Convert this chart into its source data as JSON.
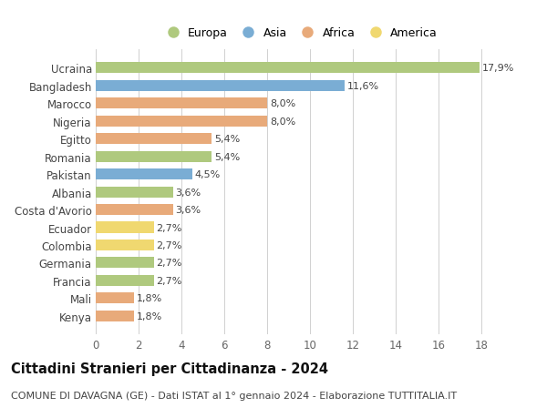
{
  "countries": [
    "Ucraina",
    "Bangladesh",
    "Marocco",
    "Nigeria",
    "Egitto",
    "Romania",
    "Pakistan",
    "Albania",
    "Costa d'Avorio",
    "Ecuador",
    "Colombia",
    "Germania",
    "Francia",
    "Mali",
    "Kenya"
  ],
  "values": [
    17.9,
    11.6,
    8.0,
    8.0,
    5.4,
    5.4,
    4.5,
    3.6,
    3.6,
    2.7,
    2.7,
    2.7,
    2.7,
    1.8,
    1.8
  ],
  "labels": [
    "17,9%",
    "11,6%",
    "8,0%",
    "8,0%",
    "5,4%",
    "5,4%",
    "4,5%",
    "3,6%",
    "3,6%",
    "2,7%",
    "2,7%",
    "2,7%",
    "2,7%",
    "1,8%",
    "1,8%"
  ],
  "continents": [
    "Europa",
    "Asia",
    "Africa",
    "Africa",
    "Africa",
    "Europa",
    "Asia",
    "Europa",
    "Africa",
    "America",
    "America",
    "Europa",
    "Europa",
    "Africa",
    "Africa"
  ],
  "continent_colors": {
    "Europa": "#afc97e",
    "Asia": "#7aadd4",
    "Africa": "#e8aa7a",
    "America": "#f0d870"
  },
  "legend_order": [
    "Europa",
    "Asia",
    "Africa",
    "America"
  ],
  "title": "Cittadini Stranieri per Cittadinanza - 2024",
  "subtitle": "COMUNE DI DAVAGNA (GE) - Dati ISTAT al 1° gennaio 2024 - Elaborazione TUTTITALIA.IT",
  "xlim": [
    0,
    19
  ],
  "xticks": [
    0,
    2,
    4,
    6,
    8,
    10,
    12,
    14,
    16,
    18
  ],
  "background_color": "#ffffff",
  "plot_bg_color": "#f7f7f7",
  "grid_color": "#d0d0d0",
  "bar_height": 0.62,
  "label_fontsize": 8,
  "tick_fontsize": 8.5,
  "title_fontsize": 10.5,
  "subtitle_fontsize": 8
}
